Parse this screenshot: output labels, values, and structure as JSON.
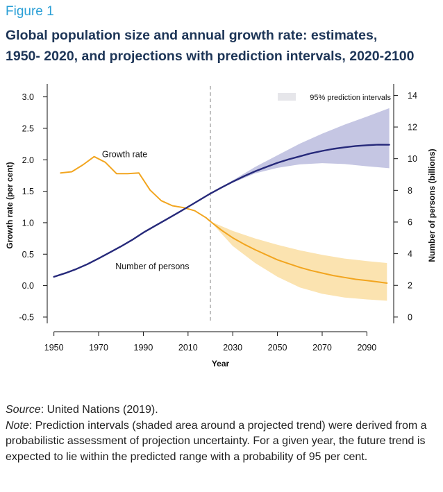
{
  "figure_label": "Figure 1",
  "title_line1": "Global population size and annual growth rate: estimates,",
  "title_line2": "1950- 2020, and projections with prediction intervals, 2020-2100",
  "source_label": "Source",
  "source_text": ": United Nations (2019).",
  "note_label": "Note",
  "note_text": ": Prediction intervals (shaded area around a projected trend) were derived from a probabilistic assessment of projection uncertainty. For a given year, the future trend is expected to lie within the predicted range with a probability of 95  per cent.",
  "colors": {
    "growth": "#f2a51f",
    "growth_band": "#fbe3b0",
    "population": "#26297a",
    "population_band": "#c5c6e3",
    "divider": "#999999",
    "legend_swatch": "#e6e6ea"
  },
  "chart_data": {
    "type": "line",
    "xlabel": "Year",
    "ylabel_left": "Growth rate (per cent)",
    "ylabel_right": "Number of persons (billions)",
    "xlim": [
      1947,
      2102
    ],
    "ylim_left": [
      -0.6,
      3.15
    ],
    "ylim_right": [
      -0.4,
      14.5
    ],
    "x_ticks": [
      1950,
      1970,
      1990,
      2010,
      2030,
      2050,
      2070,
      2090
    ],
    "x_tick_labels": [
      "1950",
      "1970",
      "1990",
      "2010",
      "2030",
      "2050",
      "2070",
      "2090"
    ],
    "y_left_ticks": [
      -0.5,
      0.0,
      0.5,
      1.0,
      1.5,
      2.0,
      2.5,
      3.0
    ],
    "y_left_tick_labels": [
      "-0.5",
      "0.0",
      "0.5",
      "1.0",
      "1.5",
      "2.0",
      "2.5",
      "3.0"
    ],
    "y_right_ticks": [
      0,
      2,
      4,
      6,
      8,
      10,
      12,
      14
    ],
    "y_right_tick_labels": [
      "0",
      "2",
      "4",
      "6",
      "8",
      "10",
      "12",
      "14"
    ],
    "projection_start": 2020,
    "legend": {
      "label": "95% prediction intervals",
      "position": "top-right"
    },
    "annotations": {
      "growth": "Growth rate",
      "population": "Number of persons"
    },
    "series": [
      {
        "name": "Growth rate",
        "axis": "left",
        "x": [
          1953,
          1958,
          1963,
          1968,
          1973,
          1978,
          1983,
          1988,
          1993,
          1998,
          2003,
          2008,
          2013,
          2018,
          2020,
          2025,
          2030,
          2035,
          2040,
          2045,
          2050,
          2055,
          2060,
          2065,
          2070,
          2075,
          2080,
          2085,
          2090,
          2095,
          2099
        ],
        "y": [
          1.79,
          1.81,
          1.92,
          2.05,
          1.96,
          1.78,
          1.78,
          1.79,
          1.52,
          1.35,
          1.27,
          1.24,
          1.19,
          1.08,
          1.02,
          0.88,
          0.76,
          0.66,
          0.57,
          0.49,
          0.41,
          0.35,
          0.29,
          0.24,
          0.2,
          0.16,
          0.13,
          0.1,
          0.08,
          0.06,
          0.04
        ]
      },
      {
        "name": "Number of persons",
        "axis": "right",
        "x": [
          1950,
          1955,
          1960,
          1965,
          1970,
          1975,
          1980,
          1985,
          1990,
          1995,
          2000,
          2005,
          2010,
          2015,
          2020,
          2025,
          2030,
          2035,
          2040,
          2045,
          2050,
          2055,
          2060,
          2065,
          2070,
          2075,
          2080,
          2085,
          2090,
          2095,
          2100
        ],
        "y": [
          2.54,
          2.77,
          3.03,
          3.34,
          3.7,
          4.08,
          4.46,
          4.87,
          5.33,
          5.74,
          6.14,
          6.54,
          6.96,
          7.38,
          7.8,
          8.18,
          8.55,
          8.89,
          9.2,
          9.48,
          9.74,
          9.96,
          10.15,
          10.34,
          10.49,
          10.62,
          10.72,
          10.8,
          10.85,
          10.89,
          10.88
        ]
      }
    ],
    "prediction_intervals": [
      {
        "series": "Growth rate",
        "x": [
          2020,
          2030,
          2040,
          2050,
          2060,
          2070,
          2080,
          2090,
          2099
        ],
        "lower": [
          1.02,
          0.63,
          0.36,
          0.14,
          -0.03,
          -0.13,
          -0.19,
          -0.22,
          -0.24
        ],
        "upper": [
          1.02,
          0.87,
          0.75,
          0.65,
          0.56,
          0.49,
          0.43,
          0.39,
          0.36
        ]
      },
      {
        "series": "Number of persons",
        "x": [
          2020,
          2030,
          2040,
          2050,
          2060,
          2070,
          2080,
          2090,
          2100
        ],
        "lower": [
          7.8,
          8.48,
          9.07,
          9.42,
          9.64,
          9.72,
          9.66,
          9.52,
          9.4
        ],
        "upper": [
          7.8,
          8.63,
          9.48,
          10.22,
          10.95,
          11.58,
          12.15,
          12.66,
          13.19
        ]
      }
    ]
  }
}
